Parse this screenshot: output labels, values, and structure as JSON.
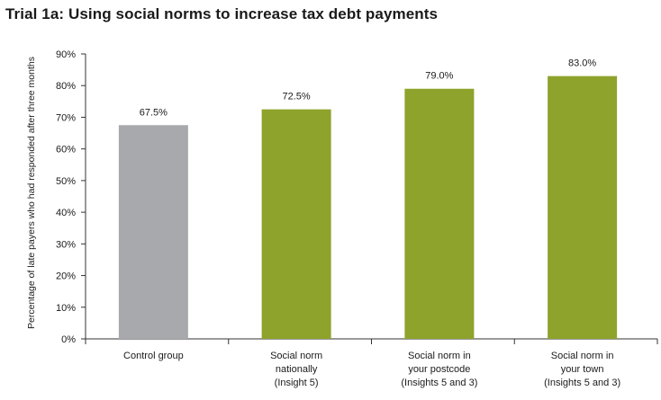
{
  "chart_data": {
    "type": "bar",
    "title": "Trial 1a: Using social norms to increase tax debt payments",
    "ylabel": "Percentage of late payers who had responded after three months",
    "xlabel": "",
    "ylim": [
      0,
      90
    ],
    "yticks": [
      "0%",
      "10%",
      "20%",
      "30%",
      "40%",
      "50%",
      "60%",
      "70%",
      "80%",
      "90%"
    ],
    "ytick_values": [
      0,
      10,
      20,
      30,
      40,
      50,
      60,
      70,
      80,
      90
    ],
    "categories": [
      [
        "Control group"
      ],
      [
        "Social norm",
        "nationally",
        "(Insight 5)"
      ],
      [
        "Social norm in",
        "your postcode",
        "(Insights 5 and 3)"
      ],
      [
        "Social norm in",
        "your town",
        "(Insights 5 and 3)"
      ]
    ],
    "values": [
      67.5,
      72.5,
      79.0,
      83.0
    ],
    "value_labels": [
      "67.5%",
      "72.5%",
      "79.0%",
      "83.0%"
    ],
    "colors": [
      "#a7a9ac",
      "#8da32b",
      "#8da32b",
      "#8da32b"
    ],
    "grid": false
  }
}
